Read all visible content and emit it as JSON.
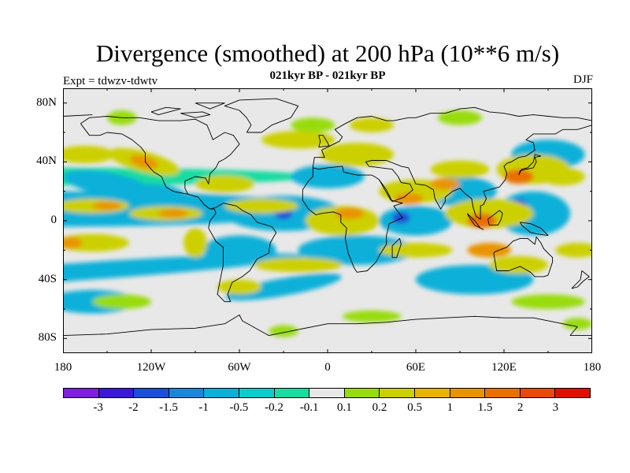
{
  "title": "Divergence (smoothed) at 200 hPa (10**6 m/s)",
  "subtitle": "021kyr BP - 021kyr BP",
  "expt_label": "Expt = tdwzv-tdwtv",
  "season": "DJF",
  "y_axis": {
    "ticks": [
      {
        "label": "80N",
        "lat": 80
      },
      {
        "label": "40N",
        "lat": 40
      },
      {
        "label": "0",
        "lat": 0
      },
      {
        "label": "40S",
        "lat": -40
      },
      {
        "label": "80S",
        "lat": -80
      }
    ]
  },
  "x_axis": {
    "ticks": [
      {
        "label": "180",
        "lon": -180
      },
      {
        "label": "120W",
        "lon": -120
      },
      {
        "label": "60W",
        "lon": -60
      },
      {
        "label": "0",
        "lon": 0
      },
      {
        "label": "60E",
        "lon": 60
      },
      {
        "label": "120E",
        "lon": 120
      },
      {
        "label": "180",
        "lon": 180
      }
    ]
  },
  "colorbar": {
    "colors": [
      "#7f1fe0",
      "#3a1ad8",
      "#1a50d8",
      "#1a88d8",
      "#0ab0d8",
      "#0fcccc",
      "#18dca0",
      "#e8e8e8",
      "#98dc10",
      "#ccd000",
      "#e8b400",
      "#e89400",
      "#e87000",
      "#e84808",
      "#e01000"
    ],
    "labels": [
      "-3",
      "-2",
      "-1.5",
      "-1",
      "-0.5",
      "-0.2",
      "-0.1",
      "0.1",
      "0.2",
      "0.5",
      "1",
      "1.5",
      "2",
      "3"
    ]
  },
  "colors": {
    "strong_neg": "#1a50d8",
    "neg": "#0ab0d8",
    "weak_neg": "#18dca0",
    "neutral": "#e8e8e8",
    "weak_pos": "#98dc10",
    "pos": "#ccd000",
    "strong_pos": "#e89400",
    "very_strong_pos": "#e87000"
  }
}
